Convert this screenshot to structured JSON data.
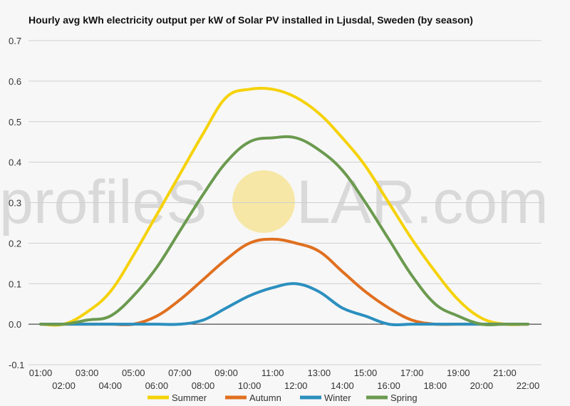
{
  "chart_data": {
    "type": "line",
    "title": "Hourly avg kWh electricity output per kW of Solar PV installed in Ljusdal, Sweden (by season)",
    "xlabel": "",
    "ylabel": "",
    "ylim": [
      -0.1,
      0.7
    ],
    "yticks": [
      "-0.1",
      "0.0",
      "0.1",
      "0.2",
      "0.3",
      "0.4",
      "0.5",
      "0.6",
      "0.7"
    ],
    "x": [
      "01:00",
      "02:00",
      "03:00",
      "04:00",
      "05:00",
      "06:00",
      "07:00",
      "08:00",
      "09:00",
      "10:00",
      "11:00",
      "12:00",
      "13:00",
      "14:00",
      "15:00",
      "16:00",
      "17:00",
      "18:00",
      "19:00",
      "20:00",
      "21:00",
      "22:00"
    ],
    "grid": true,
    "legend_position": "bottom",
    "series": [
      {
        "name": "Summer",
        "color": "#f5d20a",
        "values": [
          0.0,
          0.0,
          0.03,
          0.08,
          0.17,
          0.27,
          0.37,
          0.47,
          0.56,
          0.58,
          0.58,
          0.56,
          0.52,
          0.46,
          0.39,
          0.3,
          0.21,
          0.13,
          0.06,
          0.015,
          0.0,
          0.0
        ]
      },
      {
        "name": "Autumn",
        "color": "#e07020",
        "values": [
          0.0,
          0.0,
          0.0,
          0.0,
          0.0,
          0.02,
          0.06,
          0.11,
          0.16,
          0.2,
          0.21,
          0.2,
          0.18,
          0.13,
          0.08,
          0.04,
          0.01,
          0.0,
          0.0,
          0.0,
          0.0,
          0.0
        ]
      },
      {
        "name": "Winter",
        "color": "#2b8fbf",
        "values": [
          0.0,
          0.0,
          0.0,
          0.0,
          0.0,
          0.0,
          0.0,
          0.01,
          0.04,
          0.07,
          0.09,
          0.1,
          0.08,
          0.04,
          0.02,
          0.0,
          0.0,
          0.0,
          0.0,
          0.0,
          0.0,
          0.0
        ]
      },
      {
        "name": "Spring",
        "color": "#6b9a4f",
        "values": [
          0.0,
          0.0,
          0.01,
          0.02,
          0.07,
          0.14,
          0.23,
          0.32,
          0.4,
          0.45,
          0.46,
          0.46,
          0.43,
          0.38,
          0.3,
          0.21,
          0.12,
          0.05,
          0.02,
          0.0,
          0.0,
          0.0
        ]
      }
    ]
  },
  "watermark": {
    "left": "profileS",
    "right": "LAR.com",
    "sun_color": "#f7e7a6"
  }
}
